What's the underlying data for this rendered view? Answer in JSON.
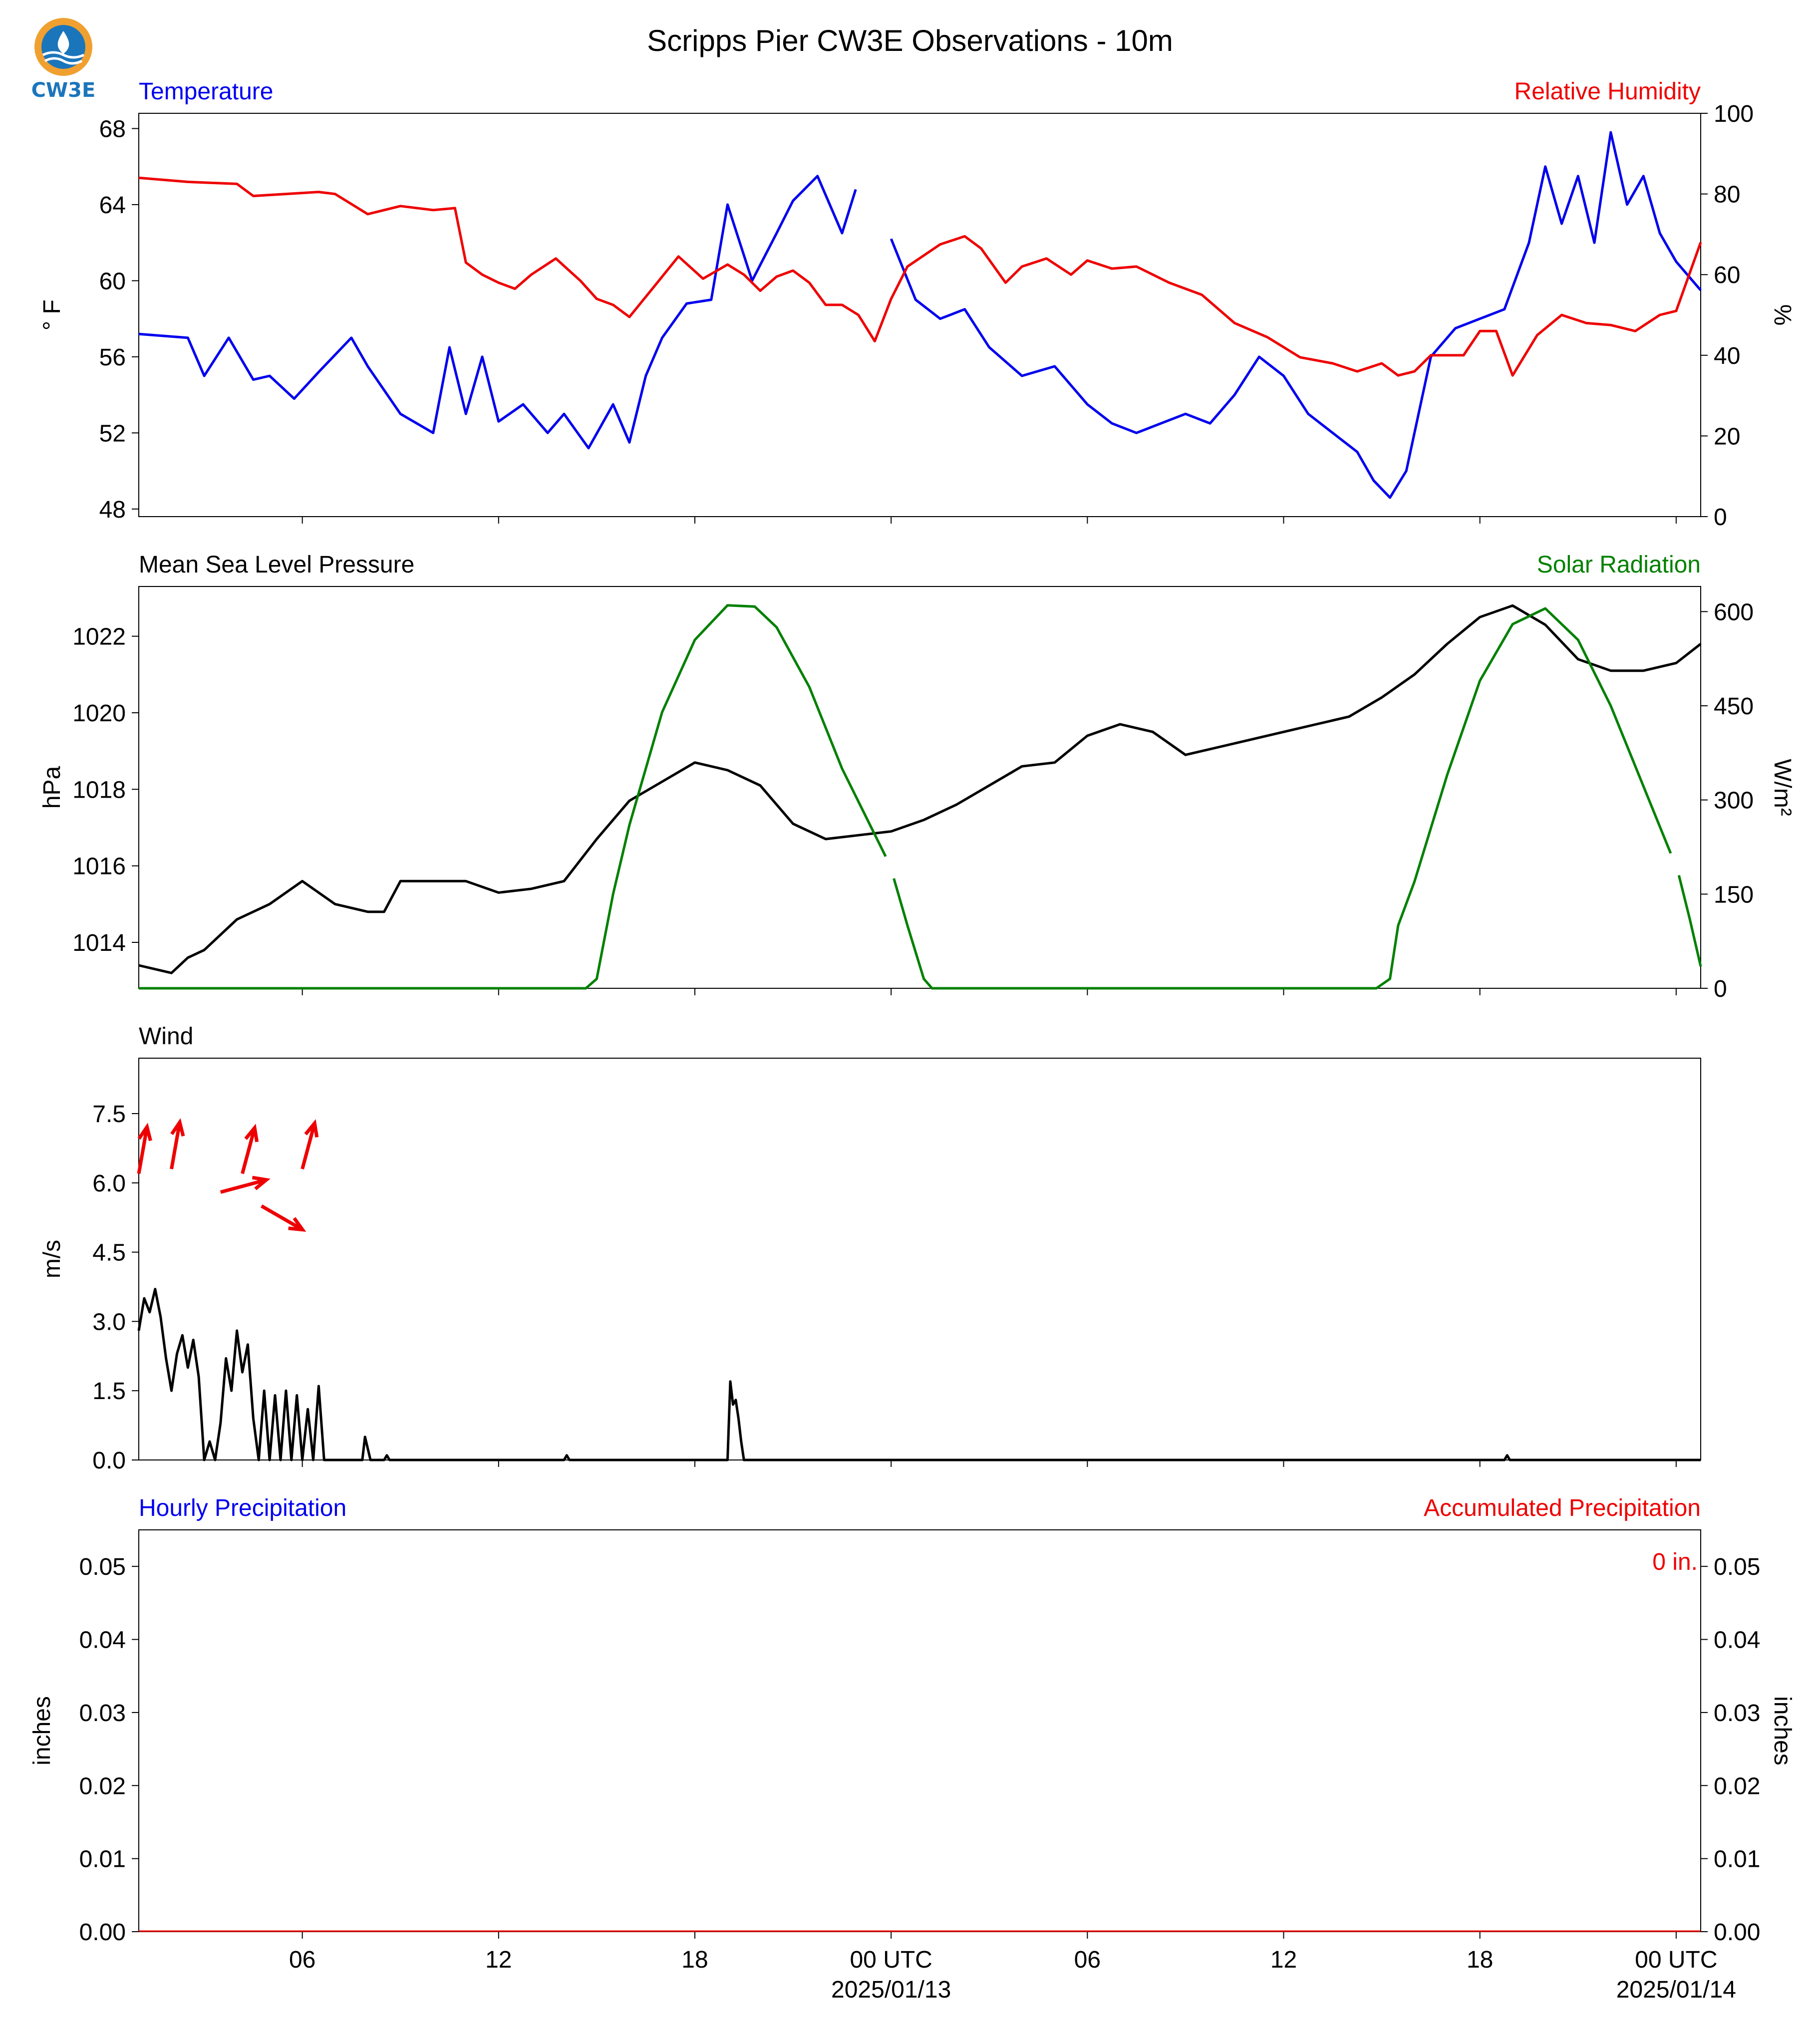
{
  "figure": {
    "title": "Scripps Pier CW3E Observations - 10m",
    "logo_text": "CW3E"
  },
  "x_axis": {
    "range": [
      "2025-01-12T01:00Z",
      "2025-01-14T00:45Z"
    ],
    "ticks": [
      "2025-01-12T06:00Z",
      "2025-01-12T12:00Z",
      "2025-01-12T18:00Z",
      "2025-01-13T00:00Z",
      "2025-01-13T06:00Z",
      "2025-01-13T12:00Z",
      "2025-01-13T18:00Z",
      "2025-01-14T00:00Z"
    ],
    "tick_labels": [
      "06",
      "12",
      "18",
      "00 UTC",
      "06",
      "12",
      "18",
      "00 UTC"
    ],
    "date_labels": [
      "2025/01/13",
      "2025/01/14"
    ]
  },
  "colors": {
    "temperature": "#0000ee",
    "humidity": "#ee0000",
    "pressure": "#000000",
    "solar": "#008000",
    "wind": "#000000",
    "wind_arrow": "#ee0000",
    "hourly_precip": "#0000ee",
    "accum_precip": "#ee0000"
  },
  "chart_data": [
    {
      "type": "line",
      "left_title": "Temperature",
      "right_title": "Relative Humidity",
      "ylabel": "° F",
      "ylabel_right": "%",
      "ylim": [
        47.6,
        68.8
      ],
      "ylim_right": [
        0,
        100
      ],
      "yticks": [
        48,
        52,
        56,
        60,
        64,
        68
      ],
      "yticks_right": [
        0,
        20,
        40,
        60,
        80,
        100
      ],
      "series": [
        {
          "axis": "left",
          "color_key": "temperature",
          "x": [
            "2025-01-12T01:00Z",
            "2025-01-12T02:30Z",
            "2025-01-12T03:00Z",
            "2025-01-12T03:45Z",
            "2025-01-12T04:30Z",
            "2025-01-12T05:00Z",
            "2025-01-12T05:45Z",
            "2025-01-12T06:30Z",
            "2025-01-12T07:30Z",
            "2025-01-12T08:00Z",
            "2025-01-12T09:00Z",
            "2025-01-12T10:00Z",
            "2025-01-12T10:30Z",
            "2025-01-12T11:00Z",
            "2025-01-12T11:30Z",
            "2025-01-12T12:00Z",
            "2025-01-12T12:45Z",
            "2025-01-12T13:30Z",
            "2025-01-12T14:00Z",
            "2025-01-12T14:45Z",
            "2025-01-12T15:30Z",
            "2025-01-12T16:00Z",
            "2025-01-12T16:30Z",
            "2025-01-12T17:00Z",
            "2025-01-12T17:45Z",
            "2025-01-12T18:30Z",
            "2025-01-12T19:00Z",
            "2025-01-12T19:45Z",
            "2025-01-12T20:30Z",
            "2025-01-12T21:00Z",
            "2025-01-12T21:45Z",
            "2025-01-12T22:30Z",
            "2025-01-12T22:55Z"
          ],
          "y": [
            57.2,
            57.0,
            55.0,
            57.0,
            54.8,
            55.0,
            53.8,
            55.2,
            57.0,
            55.5,
            53.0,
            52.0,
            56.5,
            53.0,
            56.0,
            52.6,
            53.5,
            52.0,
            53.0,
            51.2,
            53.5,
            51.5,
            55.0,
            57.0,
            58.8,
            59.0,
            64.0,
            60.0,
            62.5,
            64.2,
            65.5,
            62.5,
            64.8
          ]
        },
        {
          "axis": "left",
          "color_key": "temperature",
          "x": [
            "2025-01-13T00:00Z",
            "2025-01-13T00:45Z",
            "2025-01-13T01:30Z",
            "2025-01-13T02:15Z",
            "2025-01-13T03:00Z",
            "2025-01-13T04:00Z",
            "2025-01-13T05:00Z",
            "2025-01-13T06:00Z",
            "2025-01-13T06:45Z",
            "2025-01-13T07:30Z",
            "2025-01-13T08:15Z",
            "2025-01-13T09:00Z",
            "2025-01-13T09:45Z",
            "2025-01-13T10:30Z",
            "2025-01-13T11:15Z",
            "2025-01-13T12:00Z",
            "2025-01-13T12:45Z",
            "2025-01-13T13:30Z",
            "2025-01-13T14:15Z",
            "2025-01-13T14:45Z",
            "2025-01-13T15:15Z",
            "2025-01-13T15:45Z",
            "2025-01-13T16:30Z",
            "2025-01-13T17:15Z",
            "2025-01-13T18:00Z",
            "2025-01-13T18:45Z",
            "2025-01-13T19:30Z",
            "2025-01-13T20:00Z",
            "2025-01-13T20:30Z",
            "2025-01-13T21:00Z",
            "2025-01-13T21:30Z",
            "2025-01-13T22:00Z",
            "2025-01-13T22:30Z",
            "2025-01-13T23:00Z",
            "2025-01-13T23:30Z",
            "2025-01-14T00:00Z",
            "2025-01-14T00:45Z"
          ],
          "y": [
            62.2,
            59.0,
            58.0,
            58.5,
            56.5,
            55.0,
            55.5,
            53.5,
            52.5,
            52.0,
            52.5,
            53.0,
            52.5,
            54.0,
            56.0,
            55.0,
            53.0,
            52.0,
            51.0,
            49.5,
            48.6,
            50.0,
            56.0,
            57.5,
            58.0,
            58.5,
            62.0,
            66.0,
            63.0,
            65.5,
            62.0,
            67.8,
            64.0,
            65.5,
            62.5,
            61.0,
            59.5
          ]
        },
        {
          "axis": "right",
          "color_key": "humidity",
          "x": [
            "2025-01-12T01:00Z",
            "2025-01-12T02:30Z",
            "2025-01-12T04:00Z",
            "2025-01-12T04:30Z",
            "2025-01-12T05:30Z",
            "2025-01-12T06:30Z",
            "2025-01-12T07:00Z",
            "2025-01-12T08:00Z",
            "2025-01-12T09:00Z",
            "2025-01-12T10:00Z",
            "2025-01-12T10:40Z",
            "2025-01-12T11:00Z",
            "2025-01-12T11:30Z",
            "2025-01-12T12:00Z",
            "2025-01-12T12:30Z",
            "2025-01-12T13:00Z",
            "2025-01-12T13:45Z",
            "2025-01-12T14:30Z",
            "2025-01-12T15:00Z",
            "2025-01-12T15:30Z",
            "2025-01-12T16:00Z",
            "2025-01-12T16:45Z",
            "2025-01-12T17:30Z",
            "2025-01-12T18:15Z",
            "2025-01-12T19:00Z",
            "2025-01-12T19:30Z",
            "2025-01-12T20:00Z",
            "2025-01-12T20:30Z",
            "2025-01-12T21:00Z",
            "2025-01-12T21:30Z",
            "2025-01-12T22:00Z",
            "2025-01-12T22:30Z",
            "2025-01-12T23:00Z",
            "2025-01-12T23:30Z",
            "2025-01-13T00:00Z",
            "2025-01-13T00:30Z",
            "2025-01-13T01:30Z",
            "2025-01-13T02:15Z",
            "2025-01-13T02:45Z",
            "2025-01-13T03:30Z",
            "2025-01-13T04:00Z",
            "2025-01-13T04:45Z",
            "2025-01-13T05:30Z",
            "2025-01-13T06:00Z",
            "2025-01-13T06:45Z",
            "2025-01-13T07:30Z",
            "2025-01-13T08:30Z",
            "2025-01-13T09:30Z",
            "2025-01-13T10:30Z",
            "2025-01-13T11:30Z",
            "2025-01-13T12:30Z",
            "2025-01-13T13:30Z",
            "2025-01-13T14:15Z",
            "2025-01-13T15:00Z",
            "2025-01-13T15:30Z",
            "2025-01-13T16:00Z",
            "2025-01-13T16:30Z",
            "2025-01-13T17:00Z",
            "2025-01-13T17:30Z",
            "2025-01-13T18:00Z",
            "2025-01-13T18:30Z",
            "2025-01-13T19:00Z",
            "2025-01-13T19:45Z",
            "2025-01-13T20:30Z",
            "2025-01-13T21:15Z",
            "2025-01-13T22:00Z",
            "2025-01-13T22:45Z",
            "2025-01-13T23:30Z",
            "2025-01-14T00:00Z",
            "2025-01-14T00:45Z"
          ],
          "y": [
            84.0,
            83.0,
            82.5,
            79.5,
            80.0,
            80.5,
            80.0,
            75.0,
            77.0,
            76.0,
            76.5,
            63.0,
            60.0,
            58.0,
            56.5,
            60.0,
            64.0,
            58.5,
            54.0,
            52.5,
            49.5,
            57.0,
            64.5,
            59.0,
            62.5,
            60.0,
            56.0,
            59.5,
            61.0,
            58.0,
            52.5,
            52.5,
            50.0,
            43.5,
            54.0,
            62.0,
            67.5,
            69.5,
            66.5,
            58.0,
            62.0,
            64.0,
            60.0,
            63.5,
            61.5,
            62.0,
            58.0,
            55.0,
            48.0,
            44.5,
            39.5,
            38.0,
            36.0,
            38.0,
            35.0,
            36.0,
            40.0,
            40.0,
            40.0,
            46.0,
            46.0,
            35.0,
            45.0,
            50.0,
            48.0,
            47.5,
            46.0,
            50.0,
            51.0,
            68.0
          ]
        }
      ]
    },
    {
      "type": "line",
      "left_title": "Mean Sea Level Pressure",
      "right_title": "Solar Radiation",
      "ylabel": "hPa",
      "ylabel_right": "W/m²",
      "ylim": [
        1012.8,
        1023.3
      ],
      "ylim_right": [
        0,
        640
      ],
      "yticks": [
        1014,
        1016,
        1018,
        1020,
        1022
      ],
      "yticks_right": [
        0,
        150,
        300,
        450,
        600
      ],
      "series": [
        {
          "axis": "left",
          "color_key": "pressure",
          "x": [
            "2025-01-12T01:00Z",
            "2025-01-12T01:30Z",
            "2025-01-12T02:00Z",
            "2025-01-12T02:30Z",
            "2025-01-12T03:00Z",
            "2025-01-12T04:00Z",
            "2025-01-12T05:00Z",
            "2025-01-12T06:00Z",
            "2025-01-12T07:00Z",
            "2025-01-12T08:00Z",
            "2025-01-12T08:30Z",
            "2025-01-12T09:00Z",
            "2025-01-12T10:00Z",
            "2025-01-12T11:00Z",
            "2025-01-12T12:00Z",
            "2025-01-12T13:00Z",
            "2025-01-12T14:00Z",
            "2025-01-12T15:00Z",
            "2025-01-12T16:00Z",
            "2025-01-12T17:00Z",
            "2025-01-12T18:00Z",
            "2025-01-12T19:00Z",
            "2025-01-12T20:00Z",
            "2025-01-12T21:00Z",
            "2025-01-12T22:00Z",
            "2025-01-12T23:00Z",
            "2025-01-13T00:00Z",
            "2025-01-13T01:00Z",
            "2025-01-13T02:00Z",
            "2025-01-13T03:00Z",
            "2025-01-13T04:00Z",
            "2025-01-13T05:00Z",
            "2025-01-13T06:00Z",
            "2025-01-13T07:00Z",
            "2025-01-13T08:00Z",
            "2025-01-13T09:00Z",
            "2025-01-13T10:00Z",
            "2025-01-13T11:00Z",
            "2025-01-13T12:00Z",
            "2025-01-13T13:00Z",
            "2025-01-13T14:00Z",
            "2025-01-13T15:00Z",
            "2025-01-13T16:00Z",
            "2025-01-13T17:00Z",
            "2025-01-13T18:00Z",
            "2025-01-13T19:00Z",
            "2025-01-13T20:00Z",
            "2025-01-13T21:00Z",
            "2025-01-13T22:00Z",
            "2025-01-13T23:00Z",
            "2025-01-14T00:00Z",
            "2025-01-14T00:45Z"
          ],
          "y": [
            1013.4,
            1013.3,
            1013.2,
            1013.6,
            1013.8,
            1014.6,
            1015.0,
            1015.6,
            1015.0,
            1014.8,
            1014.8,
            1015.6,
            1015.6,
            1015.6,
            1015.3,
            1015.4,
            1015.6,
            1016.7,
            1017.7,
            1018.2,
            1018.7,
            1018.5,
            1018.1,
            1017.1,
            1016.7,
            1016.8,
            1016.9,
            1017.2,
            1017.6,
            1018.1,
            1018.6,
            1018.7,
            1019.4,
            1019.7,
            1019.5,
            1018.9,
            1019.1,
            1019.3,
            1019.5,
            1019.7,
            1019.9,
            1020.4,
            1021.0,
            1021.8,
            1022.5,
            1022.8,
            1022.3,
            1021.4,
            1021.1,
            1021.1,
            1021.3,
            1021.8
          ]
        },
        {
          "axis": "right",
          "color_key": "solar",
          "x": [
            "2025-01-12T01:00Z",
            "2025-01-12T14:40Z",
            "2025-01-12T15:00Z",
            "2025-01-12T15:30Z",
            "2025-01-12T16:00Z",
            "2025-01-12T17:00Z",
            "2025-01-12T18:00Z",
            "2025-01-12T19:00Z",
            "2025-01-12T19:50Z",
            "2025-01-12T20:30Z",
            "2025-01-12T21:30Z",
            "2025-01-12T22:30Z",
            "2025-01-12T23:50Z"
          ],
          "y": [
            0,
            0,
            15,
            150,
            260,
            440,
            555,
            610,
            608,
            575,
            480,
            350,
            210
          ]
        },
        {
          "axis": "right",
          "color_key": "solar",
          "x": [
            "2025-01-13T00:05Z",
            "2025-01-13T00:30Z",
            "2025-01-13T01:00Z",
            "2025-01-13T01:15Z",
            "2025-01-13T14:50Z",
            "2025-01-13T15:15Z",
            "2025-01-13T15:30Z",
            "2025-01-13T16:00Z",
            "2025-01-13T17:00Z",
            "2025-01-13T18:00Z",
            "2025-01-13T19:00Z",
            "2025-01-13T20:00Z",
            "2025-01-13T21:00Z",
            "2025-01-13T22:00Z",
            "2025-01-13T23:50Z"
          ],
          "y": [
            175,
            100,
            15,
            0,
            0,
            15,
            100,
            170,
            340,
            490,
            580,
            605,
            555,
            450,
            215
          ]
        },
        {
          "axis": "right",
          "color_key": "solar",
          "x": [
            "2025-01-14T00:05Z",
            "2025-01-14T00:25Z",
            "2025-01-14T00:45Z"
          ],
          "y": [
            180,
            110,
            35
          ]
        }
      ]
    },
    {
      "type": "line",
      "left_title": "Wind",
      "ylabel": "m/s",
      "ylim": [
        0,
        8.7
      ],
      "yticks": [
        0.0,
        1.5,
        3.0,
        4.5,
        6.0,
        7.5
      ],
      "ytick_labels": [
        "0.0",
        "1.5",
        "3.0",
        "4.5",
        "6.0",
        "7.5"
      ],
      "series": [
        {
          "name": "speed",
          "color_key": "wind",
          "x": [
            "2025-01-12T01:00Z",
            "2025-01-12T01:10Z",
            "2025-01-12T01:20Z",
            "2025-01-12T01:30Z",
            "2025-01-12T01:40Z",
            "2025-01-12T01:50Z",
            "2025-01-12T02:00Z",
            "2025-01-12T02:10Z",
            "2025-01-12T02:20Z",
            "2025-01-12T02:30Z",
            "2025-01-12T02:40Z",
            "2025-01-12T02:50Z",
            "2025-01-12T03:00Z",
            "2025-01-12T03:10Z",
            "2025-01-12T03:20Z",
            "2025-01-12T03:30Z",
            "2025-01-12T03:40Z",
            "2025-01-12T03:50Z",
            "2025-01-12T04:00Z",
            "2025-01-12T04:10Z",
            "2025-01-12T04:20Z",
            "2025-01-12T04:30Z",
            "2025-01-12T04:40Z",
            "2025-01-12T04:50Z",
            "2025-01-12T05:00Z",
            "2025-01-12T05:10Z",
            "2025-01-12T05:20Z",
            "2025-01-12T05:30Z",
            "2025-01-12T05:40Z",
            "2025-01-12T05:50Z",
            "2025-01-12T06:00Z",
            "2025-01-12T06:10Z",
            "2025-01-12T06:20Z",
            "2025-01-12T06:30Z",
            "2025-01-12T06:40Z",
            "2025-01-12T07:00Z",
            "2025-01-12T07:50Z",
            "2025-01-12T07:55Z",
            "2025-01-12T08:05Z",
            "2025-01-12T08:30Z",
            "2025-01-12T08:35Z",
            "2025-01-12T08:40Z",
            "2025-01-12T14:00Z",
            "2025-01-12T14:05Z",
            "2025-01-12T14:10Z",
            "2025-01-12T19:00Z",
            "2025-01-12T19:05Z",
            "2025-01-12T19:10Z",
            "2025-01-12T19:15Z",
            "2025-01-12T19:20Z",
            "2025-01-12T19:25Z",
            "2025-01-12T19:30Z",
            "2025-01-12T19:35Z",
            "2025-01-13T18:45Z",
            "2025-01-13T18:50Z",
            "2025-01-13T18:55Z",
            "2025-01-14T00:45Z"
          ],
          "y": [
            2.8,
            3.5,
            3.2,
            3.7,
            3.1,
            2.2,
            1.5,
            2.3,
            2.7,
            2.0,
            2.6,
            1.8,
            0.0,
            0.4,
            0.0,
            0.8,
            2.2,
            1.5,
            2.8,
            1.9,
            2.5,
            0.9,
            0.0,
            1.5,
            0.0,
            1.4,
            0.0,
            1.5,
            0.0,
            1.4,
            0.0,
            1.1,
            0.0,
            1.6,
            0.0,
            0.0,
            0.0,
            0.5,
            0.0,
            0.0,
            0.1,
            0.0,
            0.0,
            0.1,
            0.0,
            0.0,
            1.7,
            1.2,
            1.3,
            0.9,
            0.4,
            0.0,
            0.0,
            0.0,
            0.1,
            0.0,
            0.0
          ]
        }
      ],
      "wind_arrows": [
        {
          "x": "2025-01-12T01:00Z",
          "speed": 6.2,
          "direction_deg": 10
        },
        {
          "x": "2025-01-12T02:00Z",
          "speed": 6.3,
          "direction_deg": 10
        },
        {
          "x": "2025-01-12T03:30Z",
          "speed": 5.8,
          "direction_deg": 75
        },
        {
          "x": "2025-01-12T04:10Z",
          "speed": 6.2,
          "direction_deg": 15
        },
        {
          "x": "2025-01-12T04:45Z",
          "speed": 5.5,
          "direction_deg": 120
        },
        {
          "x": "2025-01-12T06:00Z",
          "speed": 6.3,
          "direction_deg": 15
        }
      ]
    },
    {
      "type": "bar",
      "left_title": "Hourly Precipitation",
      "right_title": "Accumulated Precipitation",
      "annotation": "0 in.",
      "ylabel": "inches",
      "ylabel_right": "inches",
      "ylim": [
        0,
        0.055
      ],
      "ylim_right": [
        0,
        0.055
      ],
      "yticks": [
        0.0,
        0.01,
        0.02,
        0.03,
        0.04,
        0.05
      ],
      "ytick_labels": [
        "0.00",
        "0.01",
        "0.02",
        "0.03",
        "0.04",
        "0.05"
      ],
      "values": [],
      "accumulated": 0
    }
  ]
}
